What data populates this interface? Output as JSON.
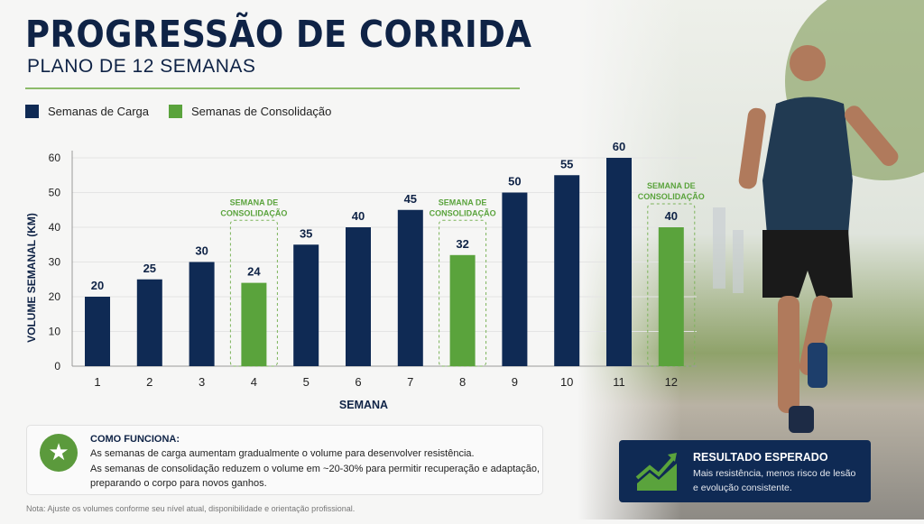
{
  "header": {
    "title": "PROGRESSÃO DE CORRIDA",
    "subtitle": "PLANO DE 12 SEMANAS"
  },
  "legend": [
    {
      "label": "Semanas de Carga",
      "color": "#0f2a54"
    },
    {
      "label": "Semanas de Consolidação",
      "color": "#5aa33c"
    }
  ],
  "chart_data": {
    "type": "bar",
    "categories": [
      "1",
      "2",
      "3",
      "4",
      "5",
      "6",
      "7",
      "8",
      "9",
      "10",
      "11",
      "12"
    ],
    "values": [
      20,
      25,
      30,
      24,
      35,
      40,
      45,
      32,
      50,
      55,
      60,
      40
    ],
    "types": [
      "carga",
      "carga",
      "carga",
      "consolidacao",
      "carga",
      "carga",
      "carga",
      "consolidacao",
      "carga",
      "carga",
      "carga",
      "consolidacao"
    ],
    "xlabel": "SEMANA",
    "ylabel": "VOLUME SEMANAL (KM)",
    "ylim": [
      0,
      60
    ],
    "yticks": [
      0,
      10,
      20,
      30,
      40,
      50,
      60
    ],
    "grid": true,
    "annotation": [
      "SEMANA DE",
      "CONSOLIDAÇÃO"
    ],
    "colors": {
      "carga": "#0f2a54",
      "consolidacao": "#5aa33c"
    }
  },
  "info": {
    "heading": "COMO FUNCIONA:",
    "lines": [
      "As semanas de carga aumentam gradualmente o volume para desenvolver resistência.",
      "As semanas de consolidação reduzem o volume em ~20-30% para permitir recuperação e adaptação,",
      "preparando o corpo para novos ganhos."
    ],
    "icon": "star-icon"
  },
  "note": "Nota: Ajuste os volumes conforme seu nível atual, disponibilidade e orientação profissional.",
  "result": {
    "heading": "RESULTADO ESPERADO",
    "lines": [
      "Mais resistência, menos risco de lesão",
      "e evolução consistente."
    ],
    "icon": "growth-chart-icon"
  }
}
